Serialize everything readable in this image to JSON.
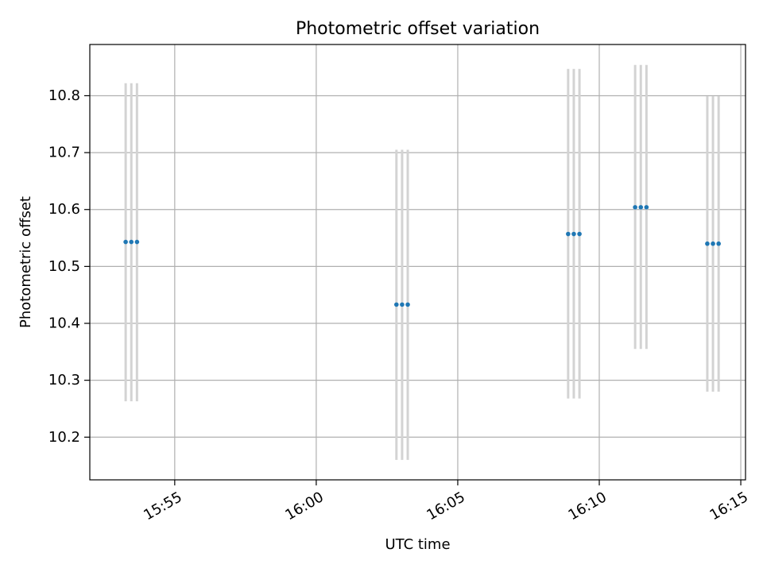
{
  "chart_data": {
    "type": "scatter",
    "title": "Photometric offset variation",
    "xlabel": "UTC time",
    "ylabel": "Photometric offset",
    "x_axis_type": "time",
    "xlim": [
      "15:52:00",
      "16:15:10"
    ],
    "ylim": [
      10.125,
      10.89
    ],
    "x_ticks": [
      "15:55",
      "16:00",
      "16:05",
      "16:10",
      "16:15"
    ],
    "y_ticks": [
      10.2,
      10.3,
      10.4,
      10.5,
      10.6,
      10.7,
      10.8
    ],
    "y_tick_labels": [
      "10.2",
      "10.3",
      "10.4",
      "10.5",
      "10.6",
      "10.7",
      "10.8"
    ],
    "grid": true,
    "marker_color": "#1f77b4",
    "errorbar_color": "#d3d3d3",
    "series": [
      {
        "points": [
          {
            "time": "15:53:16",
            "y": 10.543,
            "yerr_low": 10.263,
            "yerr_high": 10.822
          },
          {
            "time": "15:53:28",
            "y": 10.543,
            "yerr_low": 10.263,
            "yerr_high": 10.822
          },
          {
            "time": "15:53:40",
            "y": 10.543,
            "yerr_low": 10.263,
            "yerr_high": 10.822
          },
          {
            "time": "16:02:50",
            "y": 10.433,
            "yerr_low": 10.16,
            "yerr_high": 10.705
          },
          {
            "time": "16:03:02",
            "y": 10.433,
            "yerr_low": 10.16,
            "yerr_high": 10.705
          },
          {
            "time": "16:03:14",
            "y": 10.433,
            "yerr_low": 10.16,
            "yerr_high": 10.705
          },
          {
            "time": "16:08:54",
            "y": 10.557,
            "yerr_low": 10.268,
            "yerr_high": 10.847
          },
          {
            "time": "16:09:06",
            "y": 10.557,
            "yerr_low": 10.268,
            "yerr_high": 10.847
          },
          {
            "time": "16:09:18",
            "y": 10.557,
            "yerr_low": 10.268,
            "yerr_high": 10.847
          },
          {
            "time": "16:11:16",
            "y": 10.604,
            "yerr_low": 10.355,
            "yerr_high": 10.854
          },
          {
            "time": "16:11:28",
            "y": 10.604,
            "yerr_low": 10.355,
            "yerr_high": 10.854
          },
          {
            "time": "16:11:40",
            "y": 10.604,
            "yerr_low": 10.355,
            "yerr_high": 10.854
          },
          {
            "time": "16:13:49",
            "y": 10.54,
            "yerr_low": 10.28,
            "yerr_high": 10.799
          },
          {
            "time": "16:14:01",
            "y": 10.54,
            "yerr_low": 10.28,
            "yerr_high": 10.799
          },
          {
            "time": "16:14:13",
            "y": 10.54,
            "yerr_low": 10.28,
            "yerr_high": 10.799
          }
        ]
      }
    ]
  }
}
